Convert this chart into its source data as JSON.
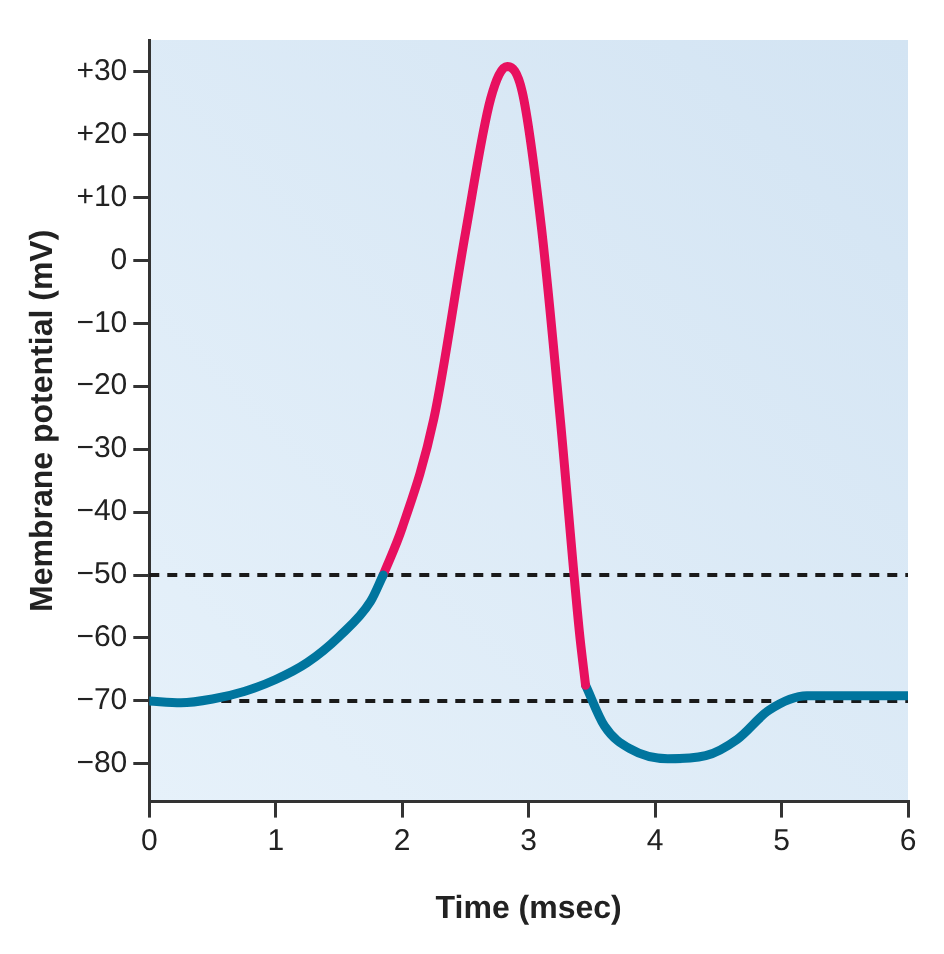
{
  "chart_data": {
    "type": "line",
    "xlabel": "Time (msec)",
    "ylabel": "Membrane potential (mV)",
    "xlim": [
      0,
      6
    ],
    "xticks": [
      0,
      1,
      2,
      3,
      4,
      5,
      6
    ],
    "ylim": [
      -86,
      35
    ],
    "yticks": [
      {
        "value": 30,
        "label": "+30"
      },
      {
        "value": 20,
        "label": "+20"
      },
      {
        "value": 10,
        "label": "+10"
      },
      0,
      {
        "value": -10,
        "label": "−10"
      },
      {
        "value": -20,
        "label": "−20"
      },
      {
        "value": -30,
        "label": "−30"
      },
      {
        "value": -40,
        "label": "−40"
      },
      {
        "value": -50,
        "label": "−50"
      },
      {
        "value": -60,
        "label": "−60"
      },
      {
        "value": -70,
        "label": "−70"
      },
      {
        "value": -80,
        "label": "−80"
      }
    ],
    "grid": false,
    "legend": false,
    "marker": "none",
    "line_style": "solid",
    "series": [
      {
        "color": "#00759e",
        "x": [
          0,
          0.25,
          0.5,
          0.75,
          1.0,
          1.25,
          1.5,
          1.75,
          1.85
        ],
        "values": [
          -70,
          -70.3,
          -69.7,
          -68.5,
          -66.6,
          -63.9,
          -59.8,
          -54.2,
          -50
        ]
      },
      {
        "color": "#e8105f",
        "x": [
          1.85,
          2.0,
          2.25,
          2.5,
          2.7,
          2.83,
          2.95,
          3.1,
          3.25,
          3.4,
          3.45
        ],
        "values": [
          -50,
          -42.5,
          -25.2,
          4.3,
          25.7,
          30.8,
          26.7,
          5.4,
          -25.2,
          -58.8,
          -67.5
        ]
      },
      {
        "color": "#00759e",
        "x": [
          3.45,
          3.6,
          3.8,
          4.1,
          4.4,
          4.65,
          4.9,
          5.2,
          6
        ],
        "values": [
          -67.5,
          -74,
          -77.6,
          -79.2,
          -78.7,
          -76.1,
          -71.5,
          -69.2,
          -69.2
        ]
      }
    ],
    "ref_lines": [
      {
        "axis": "y",
        "value": -50,
        "color": "#1a1a1a",
        "line_style": "dashed"
      },
      {
        "axis": "y",
        "value": -70,
        "color": "#1a1a1a",
        "line_style": "dashed"
      }
    ]
  }
}
